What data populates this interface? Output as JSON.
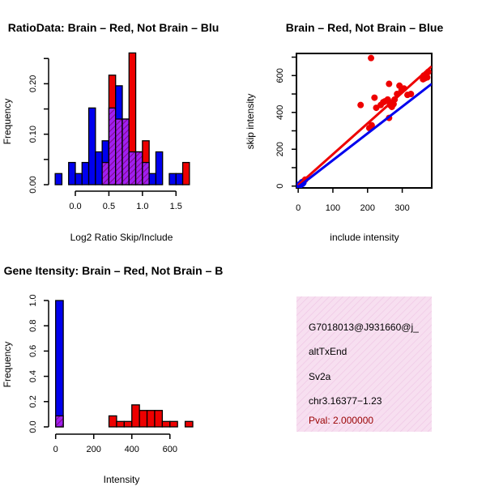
{
  "chart_data": [
    {
      "id": "ratio_hist",
      "type": "bar",
      "title": "RatioData: Brain – Red, Not Brain – Blu",
      "xlabel": "Log2 Ratio Skip/Include",
      "ylabel": "Frequency",
      "xlim": [
        -0.35,
        1.75
      ],
      "ylim": [
        0,
        0.26
      ],
      "xticks": [
        0.0,
        0.5,
        1.0,
        1.5
      ],
      "xtick_labels": [
        "0.0",
        "0.5",
        "1.0",
        "1.5"
      ],
      "yticks": [
        0.0,
        0.1,
        0.2
      ],
      "ytick_labels": [
        "0.00",
        "0.10",
        "0.20"
      ],
      "bin_width": 0.1,
      "series": [
        {
          "name": "Not Brain",
          "color": "#0000ee",
          "bins": [
            {
              "start": -0.3,
              "value": 0.022
            },
            {
              "start": -0.2,
              "value": 0.0
            },
            {
              "start": -0.1,
              "value": 0.044
            },
            {
              "start": 0.0,
              "value": 0.022
            },
            {
              "start": 0.1,
              "value": 0.044
            },
            {
              "start": 0.2,
              "value": 0.152
            },
            {
              "start": 0.3,
              "value": 0.065
            },
            {
              "start": 0.4,
              "value": 0.087
            },
            {
              "start": 0.5,
              "value": 0.152
            },
            {
              "start": 0.6,
              "value": 0.196
            },
            {
              "start": 0.7,
              "value": 0.13
            },
            {
              "start": 0.8,
              "value": 0.065
            },
            {
              "start": 0.9,
              "value": 0.065
            },
            {
              "start": 1.0,
              "value": 0.044
            },
            {
              "start": 1.1,
              "value": 0.022
            },
            {
              "start": 1.2,
              "value": 0.065
            },
            {
              "start": 1.3,
              "value": 0.0
            },
            {
              "start": 1.4,
              "value": 0.022
            },
            {
              "start": 1.5,
              "value": 0.022
            }
          ]
        },
        {
          "name": "Brain",
          "color": "#ee0000",
          "bins": [
            {
              "start": 0.4,
              "value": 0.044
            },
            {
              "start": 0.5,
              "value": 0.217
            },
            {
              "start": 0.6,
              "value": 0.13
            },
            {
              "start": 0.7,
              "value": 0.13
            },
            {
              "start": 0.8,
              "value": 0.261
            },
            {
              "start": 0.9,
              "value": 0.065
            },
            {
              "start": 1.0,
              "value": 0.087
            },
            {
              "start": 1.1,
              "value": 0.0
            },
            {
              "start": 1.2,
              "value": 0.0
            },
            {
              "start": 1.3,
              "value": 0.0
            },
            {
              "start": 1.4,
              "value": 0.0
            },
            {
              "start": 1.5,
              "value": 0.0
            },
            {
              "start": 1.6,
              "value": 0.044
            }
          ]
        }
      ],
      "overlap_color": "#a020f0"
    },
    {
      "id": "intensity_scatter",
      "type": "scatter",
      "title": "Brain – Red, Not Brain – Blue",
      "xlabel": "include intensity",
      "ylabel": "skip intensity",
      "xlim": [
        -5,
        385
      ],
      "ylim": [
        -10,
        720
      ],
      "xticks": [
        0,
        100,
        200,
        300
      ],
      "xtick_labels": [
        "0",
        "100",
        "200",
        "300"
      ],
      "yticks": [
        0,
        200,
        400,
        600
      ],
      "ytick_labels": [
        "0",
        "200",
        "400",
        "600"
      ],
      "series": [
        {
          "name": "Brain",
          "color": "#ee0000",
          "points": [
            [
              210,
              695
            ],
            [
              180,
              440
            ],
            [
              205,
              315
            ],
            [
              212,
              330
            ],
            [
              220,
              480
            ],
            [
              225,
              425
            ],
            [
              238,
              440
            ],
            [
              245,
              455
            ],
            [
              250,
              460
            ],
            [
              258,
              470
            ],
            [
              262,
              555
            ],
            [
              264,
              455
            ],
            [
              265,
              440
            ],
            [
              270,
              430
            ],
            [
              275,
              445
            ],
            [
              278,
              470
            ],
            [
              285,
              500
            ],
            [
              292,
              545
            ],
            [
              298,
              520
            ],
            [
              305,
              530
            ],
            [
              315,
              495
            ],
            [
              325,
              500
            ],
            [
              360,
              580
            ],
            [
              362,
              600
            ],
            [
              365,
              585
            ],
            [
              370,
              610
            ],
            [
              372,
              590
            ],
            [
              375,
              620
            ],
            [
              262,
              370
            ],
            [
              15,
              25
            ],
            [
              20,
              35
            ]
          ],
          "fit": [
            [
              0,
              5
            ],
            [
              385,
              650
            ]
          ]
        },
        {
          "name": "Not Brain",
          "color": "#0000ee",
          "points": [
            [
              0,
              0
            ],
            [
              2,
              5
            ],
            [
              5,
              10
            ],
            [
              8,
              15
            ],
            [
              10,
              20
            ],
            [
              12,
              12
            ],
            [
              5,
              3
            ],
            [
              15,
              18
            ],
            [
              3,
              8
            ]
          ],
          "fit": [
            [
              0,
              -5
            ],
            [
              385,
              555
            ]
          ]
        }
      ]
    },
    {
      "id": "intensity_hist",
      "type": "bar",
      "title": "Gene Itensity: Brain – Red, Not Brain – B",
      "xlabel": "Intensity",
      "ylabel": "Frequency",
      "xlim": [
        -20,
        720
      ],
      "ylim": [
        0,
        1.0
      ],
      "xticks": [
        0,
        200,
        400,
        600
      ],
      "xtick_labels": [
        "0",
        "200",
        "400",
        "600"
      ],
      "yticks": [
        0.0,
        0.2,
        0.4,
        0.6,
        0.8,
        1.0
      ],
      "ytick_labels": [
        "0.0",
        "0.2",
        "0.4",
        "0.6",
        "0.8",
        "1.0"
      ],
      "bin_width": 40,
      "series": [
        {
          "name": "Not Brain",
          "color": "#0000ee",
          "bins": [
            {
              "start": 0,
              "value": 1.0
            }
          ]
        },
        {
          "name": "Brain",
          "color": "#ee0000",
          "bins": [
            {
              "start": 0,
              "value": 0.087
            },
            {
              "start": 280,
              "value": 0.087
            },
            {
              "start": 320,
              "value": 0.043
            },
            {
              "start": 360,
              "value": 0.043
            },
            {
              "start": 400,
              "value": 0.174
            },
            {
              "start": 440,
              "value": 0.13
            },
            {
              "start": 480,
              "value": 0.13
            },
            {
              "start": 520,
              "value": 0.13
            },
            {
              "start": 560,
              "value": 0.043
            },
            {
              "start": 600,
              "value": 0.043
            },
            {
              "start": 640,
              "value": 0.0
            },
            {
              "start": 680,
              "value": 0.043
            }
          ]
        }
      ],
      "overlap_color": "#a020f0"
    }
  ],
  "info_panel": {
    "lines": [
      "G7018013@J931660@j_",
      "altTxEnd",
      "Sv2a",
      "chr3.16377−1.23"
    ],
    "pval": "Pval: 2.000000",
    "pval_color": "#990000",
    "background": "#f7dff0"
  }
}
